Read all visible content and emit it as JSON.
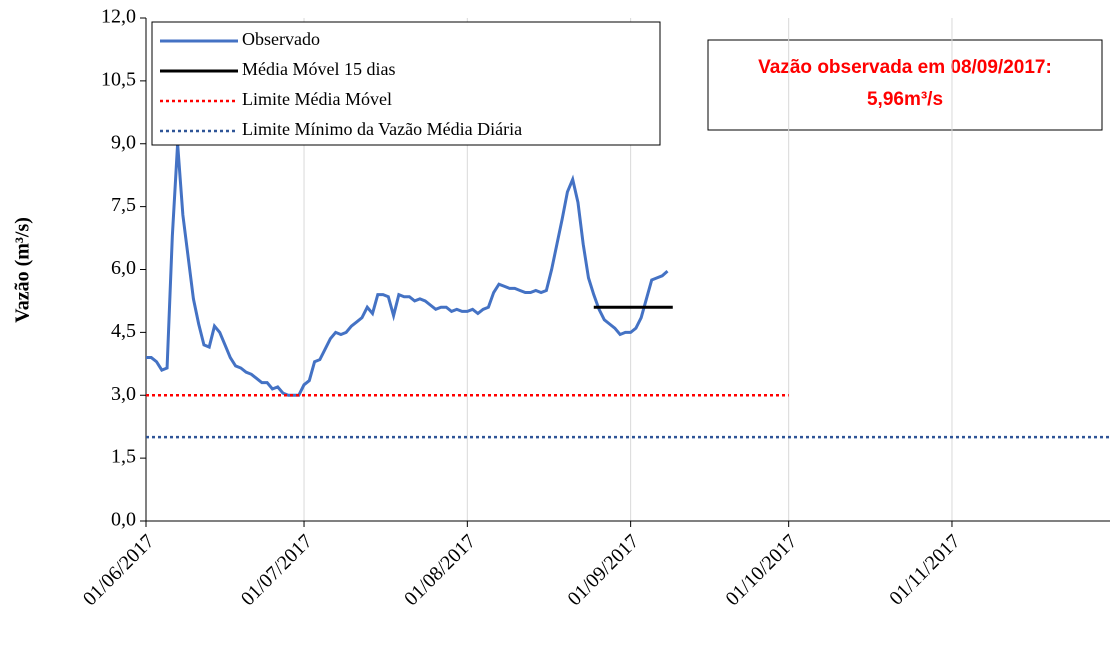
{
  "chart_data": {
    "type": "line",
    "y_label": "Vazão (m³/s)",
    "annotation": [
      "Vazão observada em 08/09/2017:",
      "5,96m³/s"
    ],
    "annotation_color": "#ff0000",
    "ylim": [
      0,
      12
    ],
    "yticks": [
      {
        "value": 0,
        "label": "0,0"
      },
      {
        "value": 1.5,
        "label": "1,5"
      },
      {
        "value": 3,
        "label": "3,0"
      },
      {
        "value": 4.5,
        "label": "4,5"
      },
      {
        "value": 6,
        "label": "6,0"
      },
      {
        "value": 7.5,
        "label": "7,5"
      },
      {
        "value": 9,
        "label": "9,0"
      },
      {
        "value": 10.5,
        "label": "10,5"
      },
      {
        "value": 12,
        "label": "12,0"
      }
    ],
    "xlim": [
      "01/06/2017",
      "01/12/2017"
    ],
    "xticks": [
      "01/06/2017",
      "01/07/2017",
      "01/08/2017",
      "01/09/2017",
      "01/10/2017",
      "01/11/2017"
    ],
    "grid": "x",
    "series": [
      {
        "name": "Observado",
        "color": "#4472c4",
        "style": "solid",
        "x": [
          "01/06/2017",
          "02/06/2017",
          "03/06/2017",
          "04/06/2017",
          "05/06/2017",
          "06/06/2017",
          "07/06/2017",
          "08/06/2017",
          "09/06/2017",
          "10/06/2017",
          "11/06/2017",
          "12/06/2017",
          "13/06/2017",
          "14/06/2017",
          "15/06/2017",
          "16/06/2017",
          "17/06/2017",
          "18/06/2017",
          "19/06/2017",
          "20/06/2017",
          "21/06/2017",
          "22/06/2017",
          "23/06/2017",
          "24/06/2017",
          "25/06/2017",
          "26/06/2017",
          "27/06/2017",
          "28/06/2017",
          "29/06/2017",
          "30/06/2017",
          "01/07/2017",
          "02/07/2017",
          "03/07/2017",
          "04/07/2017",
          "05/07/2017",
          "06/07/2017",
          "07/07/2017",
          "08/07/2017",
          "09/07/2017",
          "10/07/2017",
          "11/07/2017",
          "12/07/2017",
          "13/07/2017",
          "14/07/2017",
          "15/07/2017",
          "16/07/2017",
          "17/07/2017",
          "18/07/2017",
          "19/07/2017",
          "20/07/2017",
          "21/07/2017",
          "22/07/2017",
          "23/07/2017",
          "24/07/2017",
          "25/07/2017",
          "26/07/2017",
          "27/07/2017",
          "28/07/2017",
          "29/07/2017",
          "30/07/2017",
          "31/07/2017",
          "01/08/2017",
          "02/08/2017",
          "03/08/2017",
          "04/08/2017",
          "05/08/2017",
          "06/08/2017",
          "07/08/2017",
          "08/08/2017",
          "09/08/2017",
          "10/08/2017",
          "11/08/2017",
          "12/08/2017",
          "13/08/2017",
          "14/08/2017",
          "15/08/2017",
          "16/08/2017",
          "17/08/2017",
          "18/08/2017",
          "19/08/2017",
          "20/08/2017",
          "21/08/2017",
          "22/08/2017",
          "23/08/2017",
          "24/08/2017",
          "25/08/2017",
          "26/08/2017",
          "27/08/2017",
          "28/08/2017",
          "29/08/2017",
          "30/08/2017",
          "31/08/2017",
          "01/09/2017",
          "02/09/2017",
          "03/09/2017",
          "04/09/2017",
          "05/09/2017",
          "06/09/2017",
          "07/09/2017",
          "08/09/2017"
        ],
        "values": [
          3.9,
          3.9,
          3.8,
          3.6,
          3.65,
          6.8,
          9.0,
          7.3,
          6.3,
          5.3,
          4.7,
          4.2,
          4.15,
          4.65,
          4.5,
          4.2,
          3.9,
          3.7,
          3.65,
          3.55,
          3.5,
          3.4,
          3.3,
          3.3,
          3.15,
          3.2,
          3.05,
          3.0,
          3.0,
          3.0,
          3.25,
          3.35,
          3.8,
          3.85,
          4.1,
          4.35,
          4.5,
          4.45,
          4.5,
          4.65,
          4.75,
          4.85,
          5.1,
          4.95,
          5.4,
          5.4,
          5.35,
          4.9,
          5.4,
          5.35,
          5.35,
          5.25,
          5.3,
          5.25,
          5.15,
          5.05,
          5.1,
          5.1,
          5.0,
          5.05,
          5.0,
          5.0,
          5.05,
          4.95,
          5.05,
          5.1,
          5.45,
          5.65,
          5.6,
          5.55,
          5.55,
          5.5,
          5.45,
          5.45,
          5.5,
          5.45,
          5.5,
          6.0,
          6.6,
          7.2,
          7.85,
          8.15,
          7.6,
          6.6,
          5.8,
          5.4,
          5.05,
          4.8,
          4.7,
          4.6,
          4.45,
          4.5,
          4.5,
          4.6,
          4.85,
          5.3,
          5.75,
          5.8,
          5.85,
          5.96
        ]
      },
      {
        "name": "Média Móvel 15 dias",
        "color": "#000000",
        "style": "solid",
        "x": [
          "25/08/2017",
          "09/09/2017"
        ],
        "values": [
          5.1,
          5.1
        ]
      },
      {
        "name": "Limite Média Móvel",
        "color": "#ff0000",
        "style": "dotted",
        "x": [
          "01/06/2017",
          "01/10/2017"
        ],
        "values": [
          3,
          3
        ]
      },
      {
        "name": "Limite Mínimo da Vazão Média Diária",
        "color": "#2f5597",
        "style": "dotted",
        "x": [
          "01/06/2017",
          "01/12/2017"
        ],
        "values": [
          2,
          2
        ]
      }
    ]
  }
}
